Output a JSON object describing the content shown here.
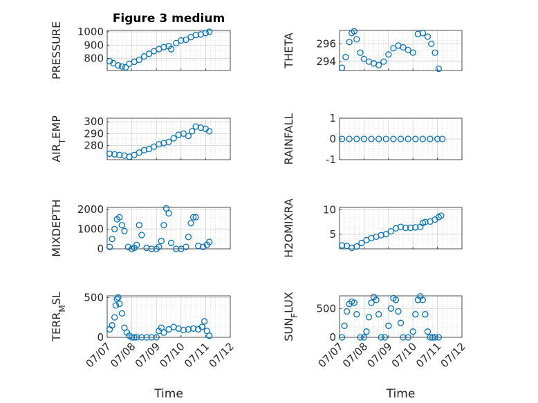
{
  "figure_title": "Figure 3 medium",
  "x_tick_labels": [
    "07/07",
    "07/08",
    "07/09",
    "07/10",
    "07/11",
    "07/12"
  ],
  "marker_color": "#0072BD",
  "chart_data": [
    {
      "id": "pressure",
      "type": "scatter",
      "title": "Figure 3 medium",
      "ylabel": "PRESSURE",
      "xlabel": "",
      "yticks": [
        800,
        900,
        1000
      ],
      "ylim": [
        710,
        1010
      ],
      "xlim": [
        0,
        5
      ],
      "grid": "on",
      "x": [
        0.1,
        0.25,
        0.45,
        0.6,
        0.75,
        0.9,
        1.1,
        1.3,
        1.5,
        1.7,
        1.9,
        2.1,
        2.3,
        2.5,
        2.6,
        2.8,
        3.0,
        3.2,
        3.4,
        3.6,
        3.8,
        4.0,
        4.15
      ],
      "y": [
        780,
        765,
        748,
        740,
        733,
        760,
        775,
        790,
        815,
        835,
        855,
        870,
        885,
        892,
        870,
        915,
        935,
        940,
        960,
        975,
        980,
        990,
        1000
      ]
    },
    {
      "id": "theta",
      "type": "scatter",
      "ylabel": "THETA",
      "xlabel": "",
      "yticks": [
        294,
        296
      ],
      "ylim": [
        293,
        297.5
      ],
      "xlim": [
        0,
        5
      ],
      "grid": "on",
      "x": [
        0.1,
        0.25,
        0.4,
        0.5,
        0.6,
        0.7,
        0.85,
        1.0,
        1.2,
        1.4,
        1.6,
        1.8,
        2.0,
        2.2,
        2.4,
        2.6,
        2.8,
        3.0,
        3.2,
        3.4,
        3.6,
        3.75,
        3.9,
        4.05
      ],
      "y": [
        293.3,
        294.5,
        296.2,
        297.2,
        297.4,
        296.5,
        295,
        294.3,
        294,
        293.8,
        293.6,
        294,
        294.8,
        295.5,
        295.8,
        295.6,
        295.3,
        295,
        297.1,
        297.2,
        296.8,
        296,
        295,
        293.2
      ]
    },
    {
      "id": "air-temp",
      "type": "scatter",
      "ylabel": "AIR_TEMP",
      "xlabel": "",
      "yticks": [
        280,
        290,
        300
      ],
      "ylim": [
        268,
        303
      ],
      "xlim": [
        0,
        5
      ],
      "grid": "on",
      "x": [
        0.1,
        0.3,
        0.5,
        0.7,
        0.9,
        1.1,
        1.3,
        1.5,
        1.7,
        1.9,
        2.1,
        2.3,
        2.5,
        2.7,
        2.9,
        3.1,
        3.3,
        3.45,
        3.6,
        3.8,
        4.0,
        4.15
      ],
      "y": [
        273,
        272.5,
        272,
        271.5,
        270.5,
        272,
        274,
        276,
        277,
        279,
        281,
        282,
        283,
        286,
        289,
        290,
        288,
        292,
        296,
        295,
        294,
        292
      ]
    },
    {
      "id": "rainfall",
      "type": "scatter",
      "ylabel": "RAINFALL",
      "xlabel": "",
      "yticks": [
        -1,
        0,
        1
      ],
      "ylim": [
        -1,
        1
      ],
      "xlim": [
        0,
        5
      ],
      "grid": "on",
      "x": [
        0.1,
        0.4,
        0.7,
        1.0,
        1.3,
        1.6,
        1.9,
        2.2,
        2.5,
        2.8,
        3.1,
        3.4,
        3.7,
        4.0,
        4.2
      ],
      "y": [
        0,
        0,
        0,
        0,
        0,
        0,
        0,
        0,
        0,
        0,
        0,
        0,
        0,
        0,
        0
      ]
    },
    {
      "id": "mixdepth",
      "type": "scatter",
      "ylabel": "MIXDEPTH",
      "xlabel": "",
      "yticks": [
        0,
        1000,
        2000
      ],
      "ylim": [
        0,
        2100
      ],
      "xlim": [
        0,
        5
      ],
      "grid": "on",
      "x": [
        0.1,
        0.2,
        0.3,
        0.4,
        0.5,
        0.6,
        0.7,
        0.85,
        1.0,
        1.1,
        1.2,
        1.3,
        1.4,
        1.6,
        1.8,
        2.0,
        2.1,
        2.2,
        2.3,
        2.4,
        2.5,
        2.6,
        2.8,
        3.0,
        3.2,
        3.3,
        3.4,
        3.5,
        3.6,
        3.7,
        3.9,
        4.05,
        4.15
      ],
      "y": [
        100,
        500,
        1000,
        1500,
        1600,
        1200,
        900,
        100,
        0,
        50,
        200,
        1200,
        700,
        50,
        0,
        0,
        100,
        400,
        1200,
        2050,
        1800,
        300,
        0,
        0,
        100,
        600,
        1300,
        1600,
        1600,
        150,
        100,
        200,
        350
      ]
    },
    {
      "id": "h2omixra",
      "type": "scatter",
      "ylabel": "H2OMIXRA",
      "xlabel": "",
      "yticks": [
        5,
        10
      ],
      "ylim": [
        2,
        10.5
      ],
      "xlim": [
        0,
        5
      ],
      "grid": "on",
      "x": [
        0.1,
        0.3,
        0.5,
        0.7,
        0.9,
        1.1,
        1.3,
        1.5,
        1.7,
        1.9,
        2.1,
        2.3,
        2.5,
        2.7,
        2.9,
        3.1,
        3.3,
        3.4,
        3.5,
        3.7,
        3.9,
        4.05,
        4.15
      ],
      "y": [
        2.7,
        2.6,
        2.2,
        2.5,
        3.2,
        3.8,
        4.2,
        4.5,
        4.8,
        5.0,
        5.6,
        6.2,
        6.5,
        6.3,
        6.3,
        6.4,
        6.5,
        7.3,
        7.5,
        7.6,
        8.0,
        8.5,
        8.8
      ]
    },
    {
      "id": "terr-msl",
      "type": "scatter",
      "ylabel": "TERR_MSL",
      "xlabel": "Time",
      "yticks": [
        0,
        500
      ],
      "ylim": [
        0,
        520
      ],
      "xlim": [
        0,
        5
      ],
      "grid": "on",
      "x": [
        0.1,
        0.2,
        0.3,
        0.35,
        0.4,
        0.45,
        0.5,
        0.6,
        0.7,
        0.8,
        0.9,
        1.0,
        1.1,
        1.2,
        1.4,
        1.6,
        1.8,
        2.0,
        2.1,
        2.2,
        2.3,
        2.5,
        2.7,
        2.9,
        3.1,
        3.3,
        3.5,
        3.7,
        3.85,
        3.95,
        4.05,
        4.15
      ],
      "y": [
        100,
        150,
        250,
        400,
        480,
        500,
        420,
        300,
        120,
        60,
        20,
        0,
        0,
        0,
        0,
        0,
        0,
        0,
        80,
        120,
        60,
        100,
        130,
        110,
        90,
        100,
        110,
        100,
        130,
        200,
        80,
        20
      ]
    },
    {
      "id": "sun-flux",
      "type": "scatter",
      "ylabel": "SUN_FLUX",
      "xlabel": "Time",
      "yticks": [
        0,
        500
      ],
      "ylim": [
        0,
        720
      ],
      "xlim": [
        0,
        5
      ],
      "grid": "on",
      "x": [
        0.1,
        0.2,
        0.3,
        0.4,
        0.5,
        0.6,
        0.7,
        0.85,
        1.0,
        1.1,
        1.2,
        1.3,
        1.4,
        1.5,
        1.6,
        1.7,
        1.85,
        2.0,
        2.1,
        2.2,
        2.3,
        2.4,
        2.5,
        2.6,
        2.8,
        3.0,
        3.1,
        3.2,
        3.3,
        3.4,
        3.5,
        3.6,
        3.7,
        3.8,
        3.9,
        4.05
      ],
      "y": [
        0,
        200,
        450,
        580,
        620,
        600,
        400,
        0,
        0,
        100,
        350,
        600,
        700,
        650,
        400,
        0,
        0,
        200,
        500,
        680,
        650,
        450,
        250,
        0,
        0,
        100,
        400,
        650,
        710,
        650,
        400,
        100,
        0,
        0,
        0,
        0
      ]
    }
  ]
}
